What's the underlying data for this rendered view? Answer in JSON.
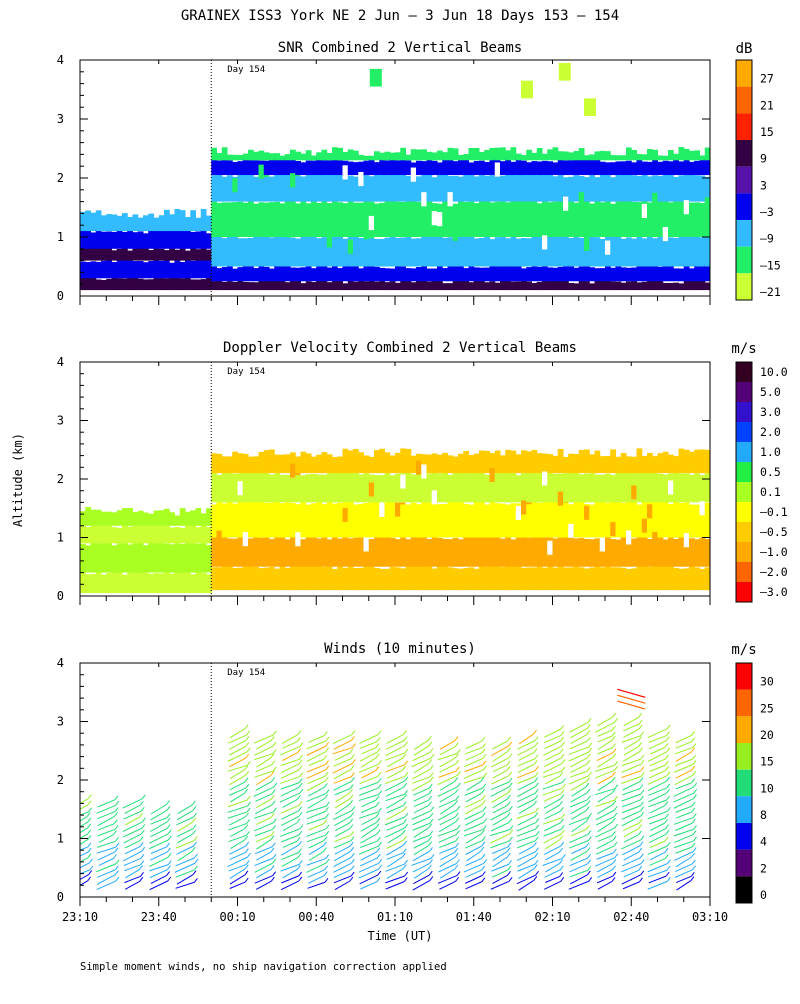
{
  "title": "GRAINEX ISS3 York NE   2 Jun –  3 Jun 18 Days 153 – 154",
  "footnote": "Simple moment winds, no ship navigation correction applied",
  "chart_data": [
    {
      "type": "heatmap",
      "title": "SNR Combined 2 Vertical Beams",
      "ylabel": "Altitude (km)",
      "xlabel": "",
      "ylim": [
        0,
        4
      ],
      "y_ticks": [
        "0",
        "1",
        "2",
        "3",
        "4"
      ],
      "x_ticks": [
        "23:10",
        "23:40",
        "00:10",
        "00:40",
        "01:10",
        "01:40",
        "02:10",
        "02:40",
        "03:10"
      ],
      "show_x_labels": false,
      "day_marker": {
        "label": "Day 154",
        "time": "00:00"
      },
      "colorbar": {
        "unit": "dB",
        "labels": [
          "27",
          "21",
          "15",
          "9",
          "3",
          "–3",
          "–9",
          "–15",
          "–21"
        ],
        "colors": [
          "#ffaa00",
          "#ff6600",
          "#ff2200",
          "#330044",
          "#5511aa",
          "#0000ee",
          "#33bbff",
          "#22ee66",
          "#ccff33"
        ]
      },
      "coverage": [
        {
          "x": [
            0,
            2.1
          ],
          "y": [
            0.1,
            1.4
          ]
        },
        {
          "x": [
            2.1,
            8.0
          ],
          "y": [
            0.1,
            2.4
          ]
        }
      ],
      "bands_2_1": [
        [
          0.1,
          "#330044"
        ],
        [
          0.3,
          "#0000ee"
        ],
        [
          0.6,
          "#330044"
        ],
        [
          0.8,
          "#0000ee"
        ],
        [
          1.1,
          "#33bbff"
        ],
        [
          1.4,
          null
        ]
      ],
      "bands_8_2": [
        [
          0.1,
          "#330044"
        ],
        [
          0.25,
          "#0000ee"
        ],
        [
          0.5,
          "#33bbff"
        ],
        [
          1.0,
          "#22ee66"
        ],
        [
          1.6,
          "#33bbff"
        ],
        [
          2.05,
          "#0000ee"
        ],
        [
          2.3,
          "#22ee66"
        ],
        [
          2.45,
          null
        ]
      ]
    },
    {
      "type": "heatmap",
      "title": "Doppler Velocity Combined 2 Vertical Beams",
      "ylabel": "Altitude (km)",
      "xlabel": "",
      "ylim": [
        0,
        4
      ],
      "y_ticks": [
        "0",
        "1",
        "2",
        "3",
        "4"
      ],
      "x_ticks": [
        "23:10",
        "23:40",
        "00:10",
        "00:40",
        "01:10",
        "01:40",
        "02:10",
        "02:40",
        "03:10"
      ],
      "show_x_labels": false,
      "day_marker": {
        "label": "Day 154",
        "time": "00:00"
      },
      "colorbar": {
        "unit": "m/s",
        "labels": [
          "10.0",
          "5.0",
          "3.0",
          "2.0",
          "1.0",
          "0.5",
          "0.1",
          "–0.1",
          "–0.5",
          "–1.0",
          "–2.0",
          "–3.0"
        ],
        "colors": [
          "#330022",
          "#550077",
          "#3311cc",
          "#0044ff",
          "#22aaff",
          "#22ee44",
          "#aaff22",
          "#ffff00",
          "#ffcc00",
          "#ffaa00",
          "#ff6600",
          "#ff0000"
        ]
      },
      "bands_2_1": [
        [
          0.05,
          "#ccff33"
        ],
        [
          0.4,
          "#aaff22"
        ],
        [
          0.9,
          "#ccff33"
        ],
        [
          1.2,
          "#aaff22"
        ],
        [
          1.45,
          null
        ]
      ],
      "bands_8_2": [
        [
          0.1,
          "#ffcc00"
        ],
        [
          0.5,
          "#ffaa00"
        ],
        [
          1.0,
          "#ffff00"
        ],
        [
          1.6,
          "#ccff33"
        ],
        [
          2.1,
          "#ffcc00"
        ],
        [
          2.45,
          null
        ]
      ]
    },
    {
      "type": "scatter",
      "title": "Winds (10 minutes)",
      "ylabel": "Altitude (km)",
      "xlabel": "Time (UT)",
      "ylim": [
        0,
        4
      ],
      "y_ticks": [
        "0",
        "1",
        "2",
        "3",
        "4"
      ],
      "x_ticks": [
        "23:10",
        "23:40",
        "00:10",
        "00:40",
        "01:10",
        "01:40",
        "02:10",
        "02:40",
        "03:10"
      ],
      "show_x_labels": true,
      "day_marker": {
        "label": "Day 154",
        "time": "00:00"
      },
      "colorbar": {
        "unit": "m/s",
        "labels": [
          "30",
          "25",
          "20",
          "15",
          "10",
          "8",
          "4",
          "2",
          "0"
        ],
        "colors": [
          "#ff0000",
          "#ff6600",
          "#ffaa00",
          "#99ee22",
          "#22dd77",
          "#22aaff",
          "#0000ee",
          "#550077",
          "#000000"
        ]
      },
      "profile_times": [
        "23:10",
        "23:20",
        "23:30",
        "23:40",
        "23:50",
        "00:10",
        "00:20",
        "00:30",
        "00:40",
        "00:50",
        "01:00",
        "01:10",
        "01:20",
        "01:30",
        "01:40",
        "01:50",
        "02:00",
        "02:10",
        "02:20",
        "02:30",
        "02:40",
        "02:50",
        "03:00"
      ],
      "profile_tops_km": [
        1.7,
        1.7,
        1.7,
        1.6,
        1.6,
        2.9,
        2.8,
        2.8,
        2.8,
        2.8,
        2.8,
        2.8,
        2.7,
        2.7,
        2.7,
        2.7,
        2.8,
        2.9,
        3.0,
        3.1,
        3.1,
        2.9,
        2.8
      ]
    }
  ]
}
